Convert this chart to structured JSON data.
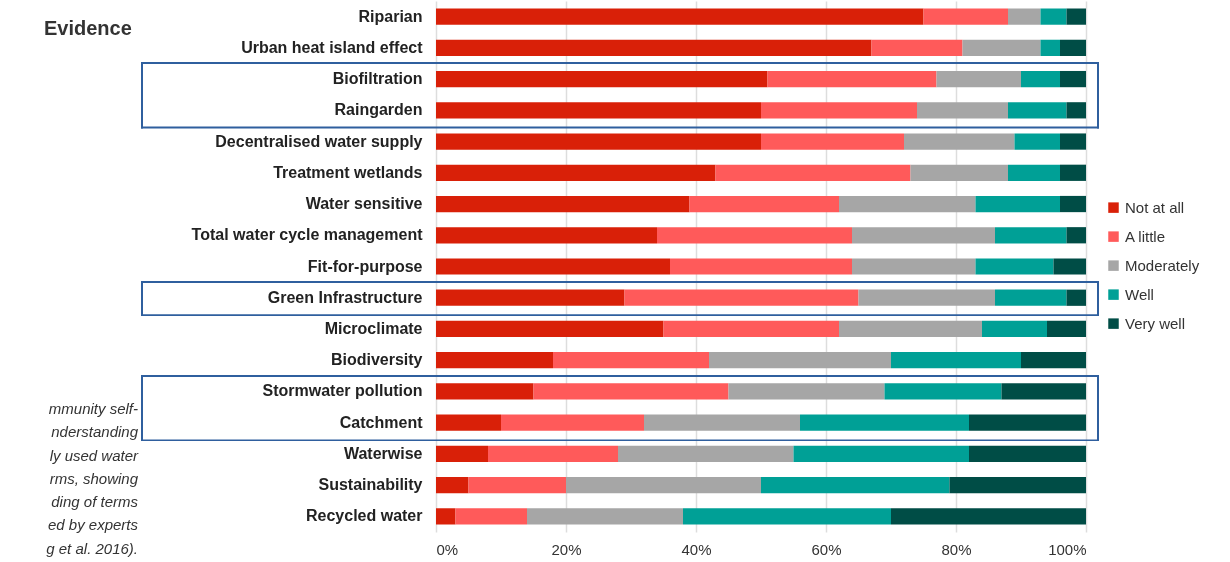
{
  "chart_data": {
    "type": "bar",
    "orientation": "horizontal",
    "stacked": true,
    "title": "Evidence",
    "annotations": [
      "mmunity self-",
      "nderstanding",
      "ly used water",
      "rms, showing",
      "ding of terms",
      "ed by experts",
      "g et al. 2016)."
    ],
    "categories": [
      "Riparian",
      "Urban heat island effect",
      "Biofiltration",
      "Raingarden",
      "Decentralised water supply",
      "Treatment wetlands",
      "Water sensitive",
      "Total water cycle management",
      "Fit-for-purpose",
      "Green Infrastructure",
      "Microclimate",
      "Biodiversity",
      "Stormwater pollution",
      "Catchment",
      "Waterwise",
      "Sustainability",
      "Recycled water"
    ],
    "series": [
      {
        "name": "Not at all",
        "color": "#d92008",
        "values": [
          75,
          67,
          51,
          50,
          50,
          43,
          39,
          34,
          36,
          29,
          35,
          18,
          15,
          10,
          8,
          5,
          3
        ]
      },
      {
        "name": "A little",
        "color": "#ff5a5a",
        "values": [
          13,
          14,
          26,
          24,
          22,
          30,
          23,
          30,
          28,
          36,
          27,
          24,
          30,
          22,
          20,
          15,
          11
        ]
      },
      {
        "name": "Moderately",
        "color": "#a6a6a6",
        "values": [
          5,
          12,
          13,
          14,
          17,
          15,
          21,
          22,
          19,
          21,
          22,
          28,
          24,
          24,
          27,
          30,
          24
        ]
      },
      {
        "name": "Well",
        "color": "#00a096",
        "values": [
          4,
          3,
          6,
          9,
          7,
          8,
          13,
          11,
          12,
          11,
          10,
          20,
          18,
          26,
          27,
          29,
          32
        ]
      },
      {
        "name": "Very well",
        "color": "#004d46",
        "values": [
          3,
          4,
          4,
          3,
          4,
          4,
          4,
          3,
          5,
          3,
          6,
          10,
          13,
          18,
          18,
          21,
          30
        ]
      }
    ],
    "xlim": [
      0,
      100
    ],
    "xticks": [
      {
        "value": 0,
        "label": "0%"
      },
      {
        "value": 20,
        "label": "20%"
      },
      {
        "value": 40,
        "label": "40%"
      },
      {
        "value": 60,
        "label": "60%"
      },
      {
        "value": 80,
        "label": "80%"
      },
      {
        "value": 100,
        "label": "100%"
      }
    ],
    "grid": "x",
    "legend": "right"
  }
}
